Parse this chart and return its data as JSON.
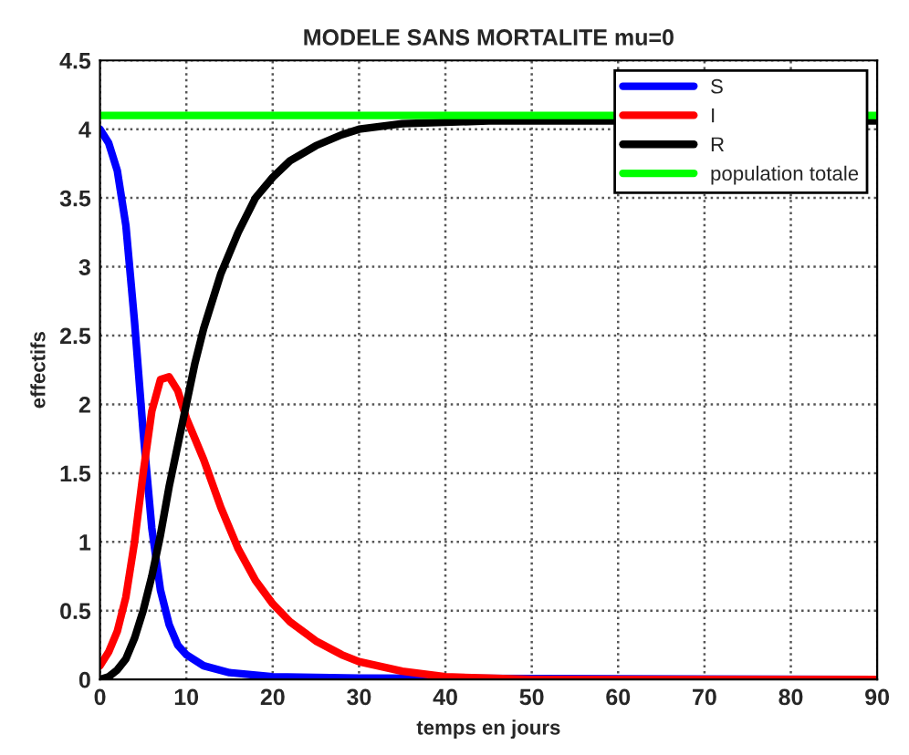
{
  "chart_data": {
    "type": "line",
    "title": "MODELE SANS MORTALITE mu=0",
    "xlabel": "temps en jours",
    "ylabel": "effectifs",
    "xlim": [
      0,
      90
    ],
    "xticks": [
      0,
      10,
      20,
      30,
      40,
      50,
      60,
      70,
      80,
      90
    ],
    "ylim": [
      0,
      4.5
    ],
    "yticks": [
      0,
      0.5,
      1,
      1.5,
      2,
      2.5,
      3,
      3.5,
      4,
      4.5
    ],
    "grid": true,
    "legend": "top right",
    "marker": "none",
    "line_style": "solid",
    "series": [
      {
        "name": "S",
        "color": "#0000ff",
        "x": [
          0,
          1,
          2,
          3,
          4,
          5,
          6,
          7,
          8,
          9,
          10,
          12,
          15,
          20,
          30,
          90
        ],
        "values": [
          4.0,
          3.9,
          3.7,
          3.3,
          2.6,
          1.8,
          1.1,
          0.65,
          0.4,
          0.25,
          0.18,
          0.1,
          0.05,
          0.02,
          0.01,
          0
        ]
      },
      {
        "name": "I",
        "color": "#ff0000",
        "x": [
          0,
          1,
          2,
          3,
          4,
          5,
          6,
          7,
          8,
          9,
          10,
          11,
          12,
          14,
          16,
          18,
          20,
          22,
          25,
          28,
          30,
          35,
          40,
          45,
          50,
          90
        ],
        "values": [
          0.1,
          0.2,
          0.35,
          0.6,
          1.0,
          1.5,
          1.95,
          2.18,
          2.2,
          2.1,
          1.9,
          1.75,
          1.6,
          1.25,
          0.95,
          0.72,
          0.55,
          0.42,
          0.28,
          0.18,
          0.13,
          0.06,
          0.02,
          0.01,
          0,
          0
        ]
      },
      {
        "name": "R",
        "color": "#000000",
        "x": [
          0,
          1,
          2,
          3,
          4,
          5,
          6,
          7,
          8,
          9,
          10,
          11,
          12,
          14,
          16,
          18,
          20,
          22,
          25,
          28,
          30,
          35,
          40,
          45,
          50,
          90
        ],
        "values": [
          0,
          0.02,
          0.07,
          0.15,
          0.3,
          0.5,
          0.75,
          1.05,
          1.4,
          1.7,
          2.0,
          2.3,
          2.55,
          2.95,
          3.25,
          3.5,
          3.65,
          3.77,
          3.88,
          3.96,
          4.0,
          4.04,
          4.05,
          4.06,
          4.06,
          4.06
        ]
      },
      {
        "name": "population totale",
        "color": "#00ff00",
        "x": [
          0,
          90
        ],
        "values": [
          4.1,
          4.1
        ]
      }
    ]
  }
}
